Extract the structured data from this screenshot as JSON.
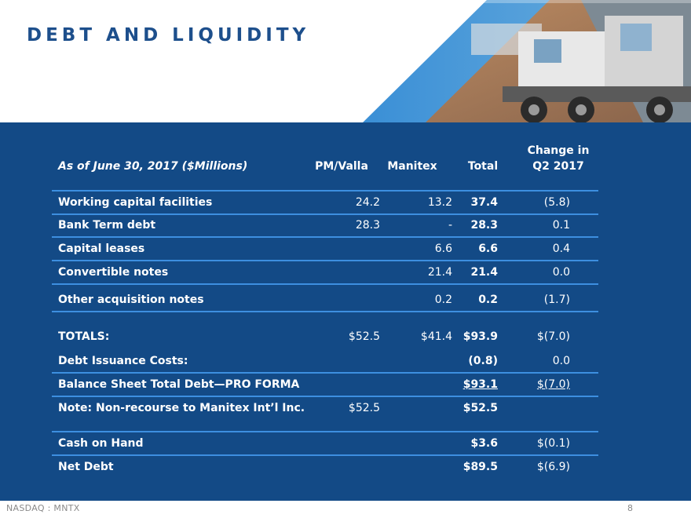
{
  "slide": {
    "title": "DEBT AND LIQUIDITY",
    "footer_left": "NASDAQ : MNTX",
    "page_number": "8"
  },
  "table": {
    "header_label": "As of June  30, 2017  ($Millions)",
    "col_pm": "PM/Valla",
    "col_manitex": "Manitex",
    "col_total": "Total",
    "col_change_line1": "Change in",
    "col_change_line2": "Q2 2017",
    "rows": [
      {
        "label": "Working capital facilities",
        "pm": "24.2",
        "manitex": "13.2",
        "total": "37.4",
        "change": "(5.8)"
      },
      {
        "label": "Bank Term debt",
        "pm": "28.3",
        "manitex": "-",
        "total": "28.3",
        "change": "0.1"
      },
      {
        "label": "Capital leases",
        "pm": "",
        "manitex": "6.6",
        "total": "6.6",
        "change": "0.4"
      },
      {
        "label": "Convertible notes",
        "pm": "",
        "manitex": "21.4",
        "total": "21.4",
        "change": "0.0"
      },
      {
        "label": "Other acquisition notes",
        "pm": "",
        "manitex": "0.2",
        "total": "0.2",
        "change": "(1.7)"
      },
      {
        "label": "TOTALS:",
        "pm": "$52.5",
        "manitex": "$41.4",
        "total": "$93.9",
        "change": "$(7.0)"
      },
      {
        "label": "Debt Issuance Costs:",
        "pm": "",
        "manitex": "",
        "total": "(0.8)",
        "change": "0.0"
      },
      {
        "label": "Balance Sheet Total Debt—PRO FORMA",
        "pm": "",
        "manitex": "",
        "total": "$93.1",
        "change": "$(7.0)"
      },
      {
        "label": "Note: Non-recourse to Manitex Int’l Inc.",
        "pm": "$52.5",
        "manitex": "",
        "total": "$52.5",
        "change": ""
      },
      {
        "label": "Cash on Hand",
        "pm": "",
        "manitex": "",
        "total": "$3.6",
        "change": "$(0.1)"
      },
      {
        "label": "Net Debt",
        "pm": "",
        "manitex": "",
        "total": "$89.5",
        "change": "$(6.9)"
      }
    ]
  }
}
